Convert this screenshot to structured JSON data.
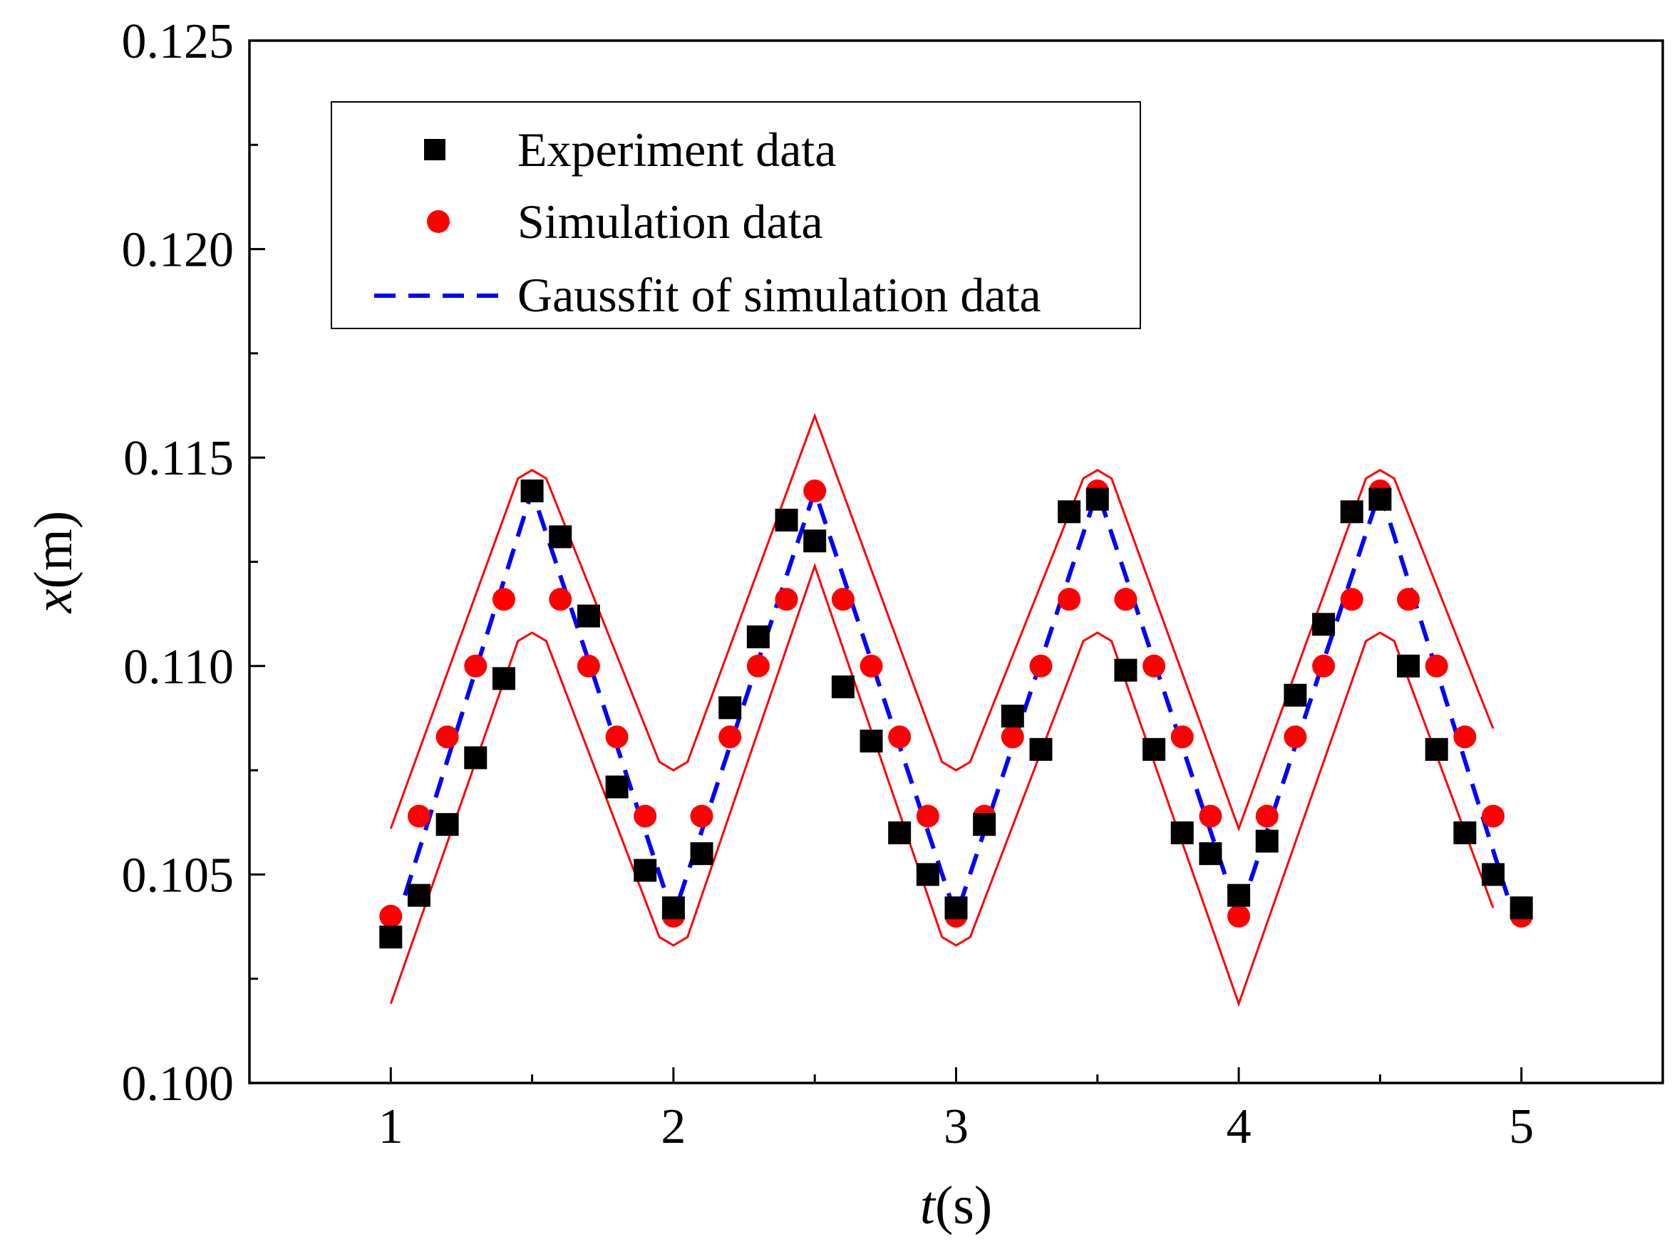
{
  "chart_data": {
    "type": "scatter",
    "title": "",
    "xlabel": {
      "italic": "t",
      "unit": "(s)"
    },
    "ylabel": {
      "italic": "x",
      "unit": "(m)"
    },
    "xlim": [
      0.5,
      5.5
    ],
    "ylim": [
      0.1,
      0.125
    ],
    "xticks": [
      {
        "value": 1,
        "label": "1"
      },
      {
        "value": 2,
        "label": "2"
      },
      {
        "value": 3,
        "label": "3"
      },
      {
        "value": 4,
        "label": "4"
      },
      {
        "value": 5,
        "label": "5"
      }
    ],
    "yticks": [
      {
        "value": 0.1,
        "label": "0.100"
      },
      {
        "value": 0.105,
        "label": "0.105"
      },
      {
        "value": 0.11,
        "label": "0.110"
      },
      {
        "value": 0.115,
        "label": "0.115"
      },
      {
        "value": 0.12,
        "label": "0.120"
      },
      {
        "value": 0.125,
        "label": "0.125"
      }
    ],
    "legend": {
      "position": "top-left",
      "entries": [
        {
          "label": "Experiment data",
          "marker": "square",
          "color": "#000000"
        },
        {
          "label": "Simulation data",
          "marker": "circle",
          "color": "#ff0000"
        },
        {
          "label": "Gaussfit of simulation data",
          "marker": "dashed-line",
          "color": "#0000ff"
        }
      ]
    },
    "series": [
      {
        "name": "Experiment data",
        "kind": "scatter",
        "marker": "square",
        "color": "#000000",
        "x": [
          1.0,
          1.1,
          1.2,
          1.3,
          1.4,
          1.5,
          1.6,
          1.7,
          1.8,
          1.9,
          2.0,
          2.1,
          2.2,
          2.3,
          2.4,
          2.5,
          2.6,
          2.7,
          2.8,
          2.9,
          3.0,
          3.1,
          3.2,
          3.3,
          3.4,
          3.5,
          3.6,
          3.7,
          3.8,
          3.9,
          4.0,
          4.1,
          4.2,
          4.3,
          4.4,
          4.5,
          4.6,
          4.7,
          4.8,
          4.9,
          5.0
        ],
        "y": [
          0.1035,
          0.1045,
          0.1062,
          0.1078,
          0.1097,
          0.1142,
          0.1131,
          0.1112,
          0.1071,
          0.1051,
          0.1042,
          0.1055,
          0.109,
          0.1107,
          0.1135,
          0.113,
          0.1095,
          0.1082,
          0.106,
          0.105,
          0.1042,
          0.1062,
          0.1088,
          0.108,
          0.1137,
          0.114,
          0.1099,
          0.108,
          0.106,
          0.1055,
          0.1045,
          0.1058,
          0.1093,
          0.111,
          0.1137,
          0.114,
          0.11,
          0.108,
          0.106,
          0.105,
          0.1042
        ]
      },
      {
        "name": "Simulation data",
        "kind": "scatter",
        "marker": "circle",
        "color": "#ff0000",
        "x": [
          1.0,
          1.1,
          1.2,
          1.3,
          1.4,
          1.5,
          1.6,
          1.7,
          1.8,
          1.9,
          2.0,
          2.1,
          2.2,
          2.3,
          2.4,
          2.5,
          2.6,
          2.7,
          2.8,
          2.9,
          3.0,
          3.1,
          3.2,
          3.3,
          3.4,
          3.5,
          3.6,
          3.7,
          3.8,
          3.9,
          4.0,
          4.1,
          4.2,
          4.3,
          4.4,
          4.5,
          4.6,
          4.7,
          4.8,
          4.9,
          5.0
        ],
        "y": [
          0.104,
          0.1064,
          0.1083,
          0.11,
          0.1116,
          0.1142,
          0.1116,
          0.11,
          0.1083,
          0.1064,
          0.104,
          0.1064,
          0.1083,
          0.11,
          0.1116,
          0.1142,
          0.1116,
          0.11,
          0.1083,
          0.1064,
          0.104,
          0.1064,
          0.1083,
          0.11,
          0.1116,
          0.1142,
          0.1116,
          0.11,
          0.1083,
          0.1064,
          0.104,
          0.1064,
          0.1083,
          0.11,
          0.1116,
          0.1142,
          0.1116,
          0.11,
          0.1083,
          0.1064,
          0.104
        ]
      },
      {
        "name": "Gaussfit of simulation data",
        "kind": "line",
        "style": "dashed",
        "color": "#0000ff",
        "x": [
          1.05,
          1.5,
          2.0,
          2.5,
          3.0,
          3.5,
          4.0,
          4.5,
          4.95
        ],
        "y": [
          0.1045,
          0.1142,
          0.104,
          0.1142,
          0.104,
          0.1142,
          0.104,
          0.1142,
          0.1045
        ]
      },
      {
        "name": "Upper confidence band",
        "kind": "line",
        "style": "solid",
        "color": "#ff0000",
        "x": [
          1.0,
          1.45,
          1.5,
          1.55,
          1.95,
          2.0,
          2.05,
          2.5,
          2.95,
          3.0,
          3.05,
          3.45,
          3.5,
          3.55,
          4.0,
          4.45,
          4.5,
          4.55,
          4.9
        ],
        "y": [
          0.1061,
          0.1145,
          0.1147,
          0.1145,
          0.1077,
          0.1075,
          0.1077,
          0.116,
          0.1077,
          0.1075,
          0.1077,
          0.1145,
          0.1147,
          0.1145,
          0.1061,
          0.1145,
          0.1147,
          0.1145,
          0.1085
        ]
      },
      {
        "name": "Lower confidence band",
        "kind": "line",
        "style": "solid",
        "color": "#ff0000",
        "x": [
          1.0,
          1.45,
          1.5,
          1.55,
          1.95,
          2.0,
          2.05,
          2.5,
          2.95,
          3.0,
          3.05,
          3.45,
          3.5,
          3.55,
          4.0,
          4.45,
          4.5,
          4.55,
          4.9
        ],
        "y": [
          0.1019,
          0.1106,
          0.1108,
          0.1106,
          0.1035,
          0.1033,
          0.1035,
          0.1124,
          0.1035,
          0.1033,
          0.1035,
          0.1106,
          0.1108,
          0.1106,
          0.1019,
          0.1106,
          0.1108,
          0.1106,
          0.1042
        ]
      }
    ]
  }
}
